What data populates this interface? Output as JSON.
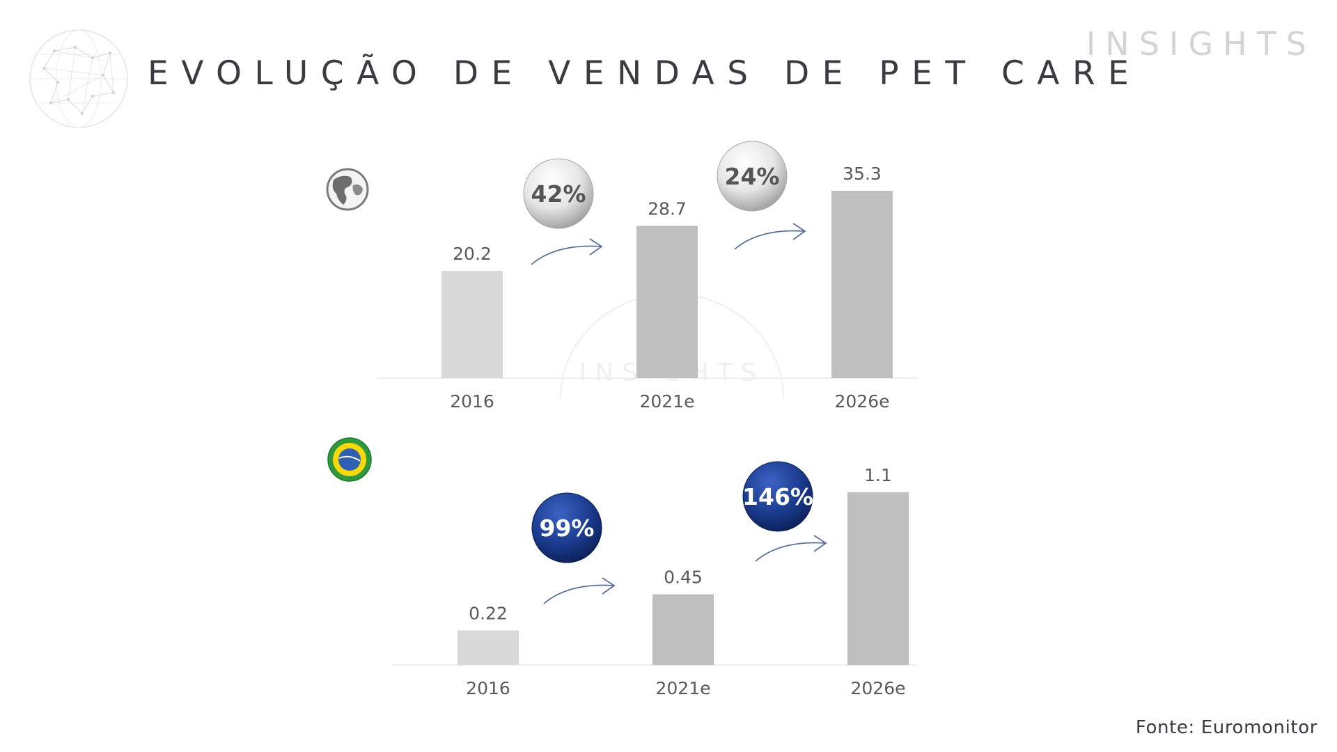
{
  "header": {
    "title": "EVOLUÇÃO DE VENDAS DE PET CARE",
    "brand": "INSIGHTS"
  },
  "watermark_text": "INSIGHTS",
  "footer": {
    "source": "Fonte: Euromonitor"
  },
  "icons": {
    "logo": "globe-network-icon",
    "world": "world-globe-icon",
    "brazil": "brazil-flag-icon",
    "growth": "curved-arrow-icon"
  },
  "colors": {
    "bar_2016": "#d9d9d9",
    "bar_forecast": "#bfbfbf",
    "world_badge": "#e8e8e8",
    "brazil_badge": "#1a3a8c"
  },
  "chart_data": [
    {
      "type": "bar",
      "region_icon": "world-globe-icon",
      "categories": [
        "2016",
        "2021e",
        "2026e"
      ],
      "values": [
        20.2,
        28.7,
        35.3
      ],
      "value_labels": [
        "20.2",
        "28.7",
        "35.3"
      ],
      "growth_labels": [
        "42%",
        "24%"
      ],
      "title": "",
      "xlabel": "",
      "ylabel": "",
      "grid": false
    },
    {
      "type": "bar",
      "region_icon": "brazil-flag-icon",
      "categories": [
        "2016",
        "2021e",
        "2026e"
      ],
      "values": [
        0.22,
        0.45,
        1.1
      ],
      "value_labels": [
        "0.22",
        "0.45",
        "1.1"
      ],
      "growth_labels": [
        "99%",
        "146%"
      ],
      "title": "",
      "xlabel": "",
      "ylabel": "",
      "grid": false
    }
  ]
}
